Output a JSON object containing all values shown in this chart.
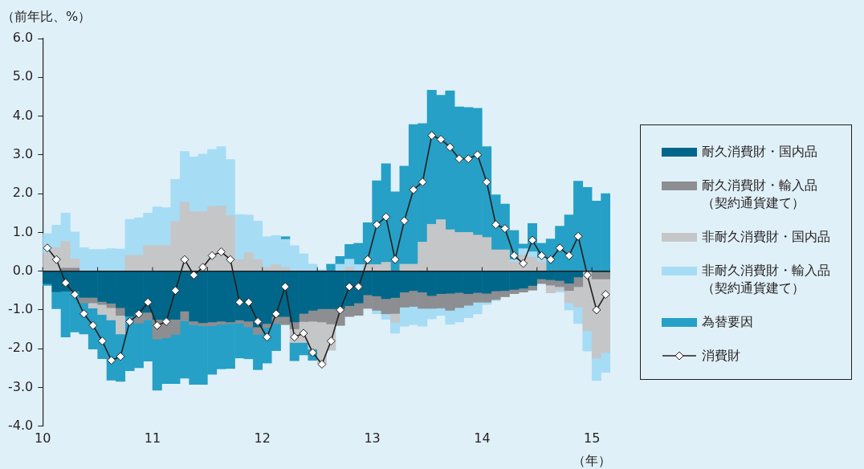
{
  "chart_data": {
    "type": "bar",
    "stacked": true,
    "ylabel": "（前年比、%）",
    "xlabel": "（年）",
    "x": [
      10.042,
      10.125,
      10.208,
      10.292,
      10.375,
      10.458,
      10.542,
      10.625,
      10.708,
      10.792,
      10.875,
      10.958,
      11.042,
      11.125,
      11.208,
      11.292,
      11.375,
      11.458,
      11.542,
      11.625,
      11.708,
      11.792,
      11.875,
      11.958,
      12.042,
      12.125,
      12.208,
      12.292,
      12.375,
      12.458,
      12.542,
      12.625,
      12.708,
      12.792,
      12.875,
      12.958,
      13.042,
      13.125,
      13.208,
      13.292,
      13.375,
      13.458,
      13.542,
      13.625,
      13.708,
      13.792,
      13.875,
      13.958,
      14.042,
      14.125,
      14.208,
      14.292,
      14.375,
      14.458,
      14.542,
      14.625,
      14.708,
      14.792,
      14.875,
      14.958,
      15.042,
      15.125
    ],
    "series": [
      {
        "name": "耐久消費財・国内品",
        "color": "#00678a",
        "values": [
          -0.32,
          -0.53,
          -0.51,
          -0.52,
          -0.68,
          -0.68,
          -0.78,
          -0.83,
          -0.94,
          -1.16,
          -1.06,
          -1.06,
          -1.25,
          -1.25,
          -1.24,
          -1.03,
          -1.29,
          -1.33,
          -1.31,
          -1.29,
          -1.31,
          -1.26,
          -1.29,
          -1.44,
          -1.35,
          -1.17,
          -1.17,
          -1.31,
          -1.09,
          -1.01,
          -0.97,
          -0.97,
          -0.96,
          -0.89,
          -0.82,
          -0.61,
          -0.64,
          -0.71,
          -0.68,
          -0.54,
          -0.5,
          -0.54,
          -0.63,
          -0.58,
          -0.57,
          -0.55,
          -0.58,
          -0.55,
          -0.57,
          -0.51,
          -0.5,
          -0.47,
          -0.44,
          -0.37,
          -0.2,
          -0.22,
          -0.24,
          -0.31,
          -0.15,
          null,
          -0.02,
          -0.02
        ]
      },
      {
        "name": "耐久消費財・輸入品（契約通貨建て）",
        "color": "#8c8e92",
        "values": [
          null,
          null,
          0.08,
          0.08,
          -0.14,
          -0.14,
          -0.08,
          -0.11,
          -0.2,
          null,
          -0.28,
          -0.2,
          -0.5,
          -0.47,
          -0.39,
          -0.25,
          -0.09,
          -0.08,
          -0.1,
          -0.08,
          -0.04,
          -0.08,
          -0.15,
          -0.19,
          -0.1,
          -0.18,
          -0.21,
          -0.18,
          -0.21,
          -0.28,
          -0.34,
          -0.39,
          -0.44,
          -0.28,
          -0.32,
          -0.35,
          -0.37,
          -0.39,
          -0.41,
          -0.39,
          -0.41,
          -0.42,
          -0.33,
          -0.37,
          -0.44,
          -0.39,
          -0.3,
          -0.25,
          -0.23,
          -0.22,
          -0.16,
          -0.11,
          -0.1,
          -0.12,
          -0.12,
          -0.14,
          -0.16,
          -0.19,
          -0.25,
          null,
          -0.18,
          -0.18
        ]
      },
      {
        "name": "非耐久消費財・国内品",
        "color": "#c5c6c8",
        "values": [
          0.47,
          0.61,
          0.69,
          0.24,
          null,
          -0.13,
          -0.26,
          -0.32,
          -0.48,
          0.41,
          0.41,
          0.66,
          0.66,
          0.66,
          1.28,
          1.78,
          1.54,
          1.54,
          1.67,
          1.68,
          1.43,
          0.3,
          0.48,
          0.3,
          0.1,
          0.17,
          0.1,
          -0.35,
          -0.54,
          -0.72,
          -1.06,
          -0.68,
          null,
          0.1,
          null,
          0.17,
          0.17,
          0.23,
          -0.23,
          0.18,
          0.18,
          0.75,
          1.21,
          1.33,
          1.07,
          1,
          1,
          0.93,
          0.87,
          0.55,
          0.55,
          0.24,
          0.42,
          0.36,
          0.24,
          -0.2,
          -0.09,
          -0.32,
          -0.53,
          -1.53,
          -2.04,
          -1.9
        ]
      },
      {
        "name": "非耐久消費財・輸入品（契約通貨建て）",
        "color": "#a7dcf5",
        "values": [
          0.5,
          0.58,
          0.73,
          0.69,
          0.61,
          0.56,
          0.56,
          0.58,
          0.57,
          0.93,
          0.97,
          0.84,
          1,
          0.98,
          1.09,
          1.31,
          1.41,
          1.48,
          1.47,
          1.53,
          1.45,
          1.16,
          0.97,
          0.99,
          0.79,
          0.75,
          0.72,
          0.66,
          0.45,
          0.18,
          0.04,
          null,
          0.18,
          0.21,
          0.17,
          null,
          -0.09,
          -0.14,
          -0.28,
          -0.49,
          -0.47,
          -0.46,
          -0.27,
          -0.19,
          -0.36,
          -0.37,
          -0.32,
          -0.3,
          -0.06,
          -0.03,
          null,
          0.06,
          0.16,
          0.14,
          0.1,
          null,
          -0.05,
          -0.18,
          -0.42,
          -0.53,
          -0.58,
          -0.51
        ]
      },
      {
        "name": "為替要因",
        "color": "#26a0c6",
        "values": [
          -0.05,
          -0.44,
          -1.19,
          -1.05,
          -0.8,
          -1.06,
          -1.14,
          -1.55,
          -1.22,
          -1.41,
          -1.15,
          -1.06,
          -1.32,
          -1.18,
          -1.27,
          -1.48,
          -1.54,
          -1.51,
          -1.25,
          -1.15,
          -1.16,
          -0.9,
          -0.82,
          -0.91,
          -0.92,
          -0.7,
          0.07,
          -0.47,
          -0.32,
          -0.29,
          null,
          0.18,
          0.2,
          0.38,
          0.55,
          1.08,
          2.16,
          2.54,
          2.05,
          2.53,
          3.6,
          3.06,
          3.46,
          3.21,
          3.58,
          3.24,
          3.22,
          3.27,
          2.34,
          1.42,
          1.18,
          0.75,
          0.12,
          0.73,
          0.38,
          0.83,
          1.16,
          1.45,
          2.32,
          2.16,
          1.81,
          2
        ]
      },
      {
        "name": "消費財",
        "type": "line",
        "color": "#231f20",
        "marker": "diamond",
        "values": [
          0.6,
          0.3,
          -0.3,
          -0.6,
          -1.1,
          -1.4,
          -1.8,
          -2.3,
          -2.2,
          -1.3,
          -1.1,
          -0.8,
          -1.4,
          -1.3,
          -0.5,
          0.3,
          -0.1,
          0.1,
          0.4,
          0.5,
          0.3,
          -0.8,
          -0.8,
          -1.3,
          -1.7,
          -1.1,
          -0.4,
          -1.7,
          -1.6,
          -2.1,
          -2.4,
          -1.8,
          -1,
          -0.4,
          -0.4,
          0.3,
          1.2,
          1.4,
          0.3,
          1.3,
          2.1,
          2.3,
          3.5,
          3.4,
          3.2,
          2.9,
          2.9,
          3,
          2.3,
          1.2,
          1.1,
          0.4,
          0.2,
          0.8,
          0.4,
          0.3,
          0.6,
          0.4,
          0.9,
          -0.1,
          -1,
          -0.6
        ]
      }
    ],
    "xlim": [
      10,
      15.167
    ],
    "xticks": [
      10,
      {
        "value": 10.5,
        "label": null
      },
      11,
      {
        "value": 11.5,
        "label": null
      },
      12,
      {
        "value": 12.5,
        "label": null
      },
      13,
      {
        "value": 13.5,
        "label": null
      },
      14,
      {
        "value": 14.5,
        "label": null
      },
      15
    ],
    "ylim": [
      -4,
      6
    ],
    "yticks": [
      {
        "value": -4,
        "label": "-4.0"
      },
      {
        "value": -3,
        "label": "-3.0"
      },
      {
        "value": -2,
        "label": "-2.0"
      },
      {
        "value": -1,
        "label": "-1.0"
      },
      {
        "value": 0,
        "label": "0.0"
      },
      {
        "value": 1,
        "label": "1.0"
      },
      {
        "value": 2,
        "label": "2.0"
      },
      {
        "value": 3,
        "label": "3.0"
      },
      {
        "value": 4,
        "label": "4.0"
      },
      {
        "value": 5,
        "label": "5.0"
      },
      {
        "value": 6,
        "label": "6.0"
      }
    ],
    "ref_lines": [
      {
        "axis": "y",
        "value": 0,
        "color": "#231f20"
      }
    ],
    "legend": "right"
  }
}
